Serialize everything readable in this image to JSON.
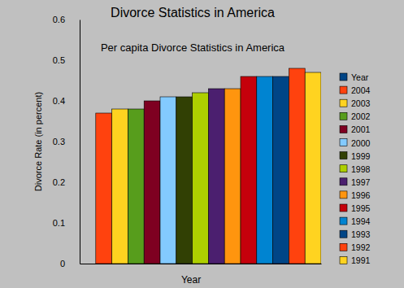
{
  "chart_data": {
    "type": "bar",
    "title": "Divorce Statistics in America",
    "subtitle": "Per capita Divorce Statistics in America",
    "x_label": "Year",
    "y_label": "Divorce Rate (in percent)",
    "categories": [
      null
    ],
    "series": [
      {
        "name": "Year",
        "color": "#004586",
        "values": [
          null
        ]
      },
      {
        "name": "2004",
        "color": "#ff420e",
        "values": [
          0.37
        ]
      },
      {
        "name": "2003",
        "color": "#ffd320",
        "values": [
          0.38
        ]
      },
      {
        "name": "2002",
        "color": "#579d1c",
        "values": [
          0.38
        ]
      },
      {
        "name": "2001",
        "color": "#7e0021",
        "values": [
          0.4
        ]
      },
      {
        "name": "2000",
        "color": "#83caff",
        "values": [
          0.41
        ]
      },
      {
        "name": "1999",
        "color": "#314004",
        "values": [
          0.41
        ]
      },
      {
        "name": "1998",
        "color": "#aecf00",
        "values": [
          0.42
        ]
      },
      {
        "name": "1997",
        "color": "#4b1f6f",
        "values": [
          0.43
        ]
      },
      {
        "name": "1996",
        "color": "#ff950e",
        "values": [
          0.43
        ]
      },
      {
        "name": "1995",
        "color": "#c5000b",
        "values": [
          0.46
        ]
      },
      {
        "name": "1994",
        "color": "#0084d1",
        "values": [
          0.46
        ]
      },
      {
        "name": "1993",
        "color": "#004586",
        "values": [
          0.46
        ]
      },
      {
        "name": "1992",
        "color": "#ff420e",
        "values": [
          0.48
        ]
      },
      {
        "name": "1991",
        "color": "#ffd320",
        "values": [
          0.47
        ]
      }
    ],
    "ylim": [
      0,
      0.6
    ],
    "yticks": [
      0,
      0.1,
      0.2,
      0.3,
      0.4,
      0.5,
      0.6
    ],
    "grid": false,
    "legend": "right"
  }
}
